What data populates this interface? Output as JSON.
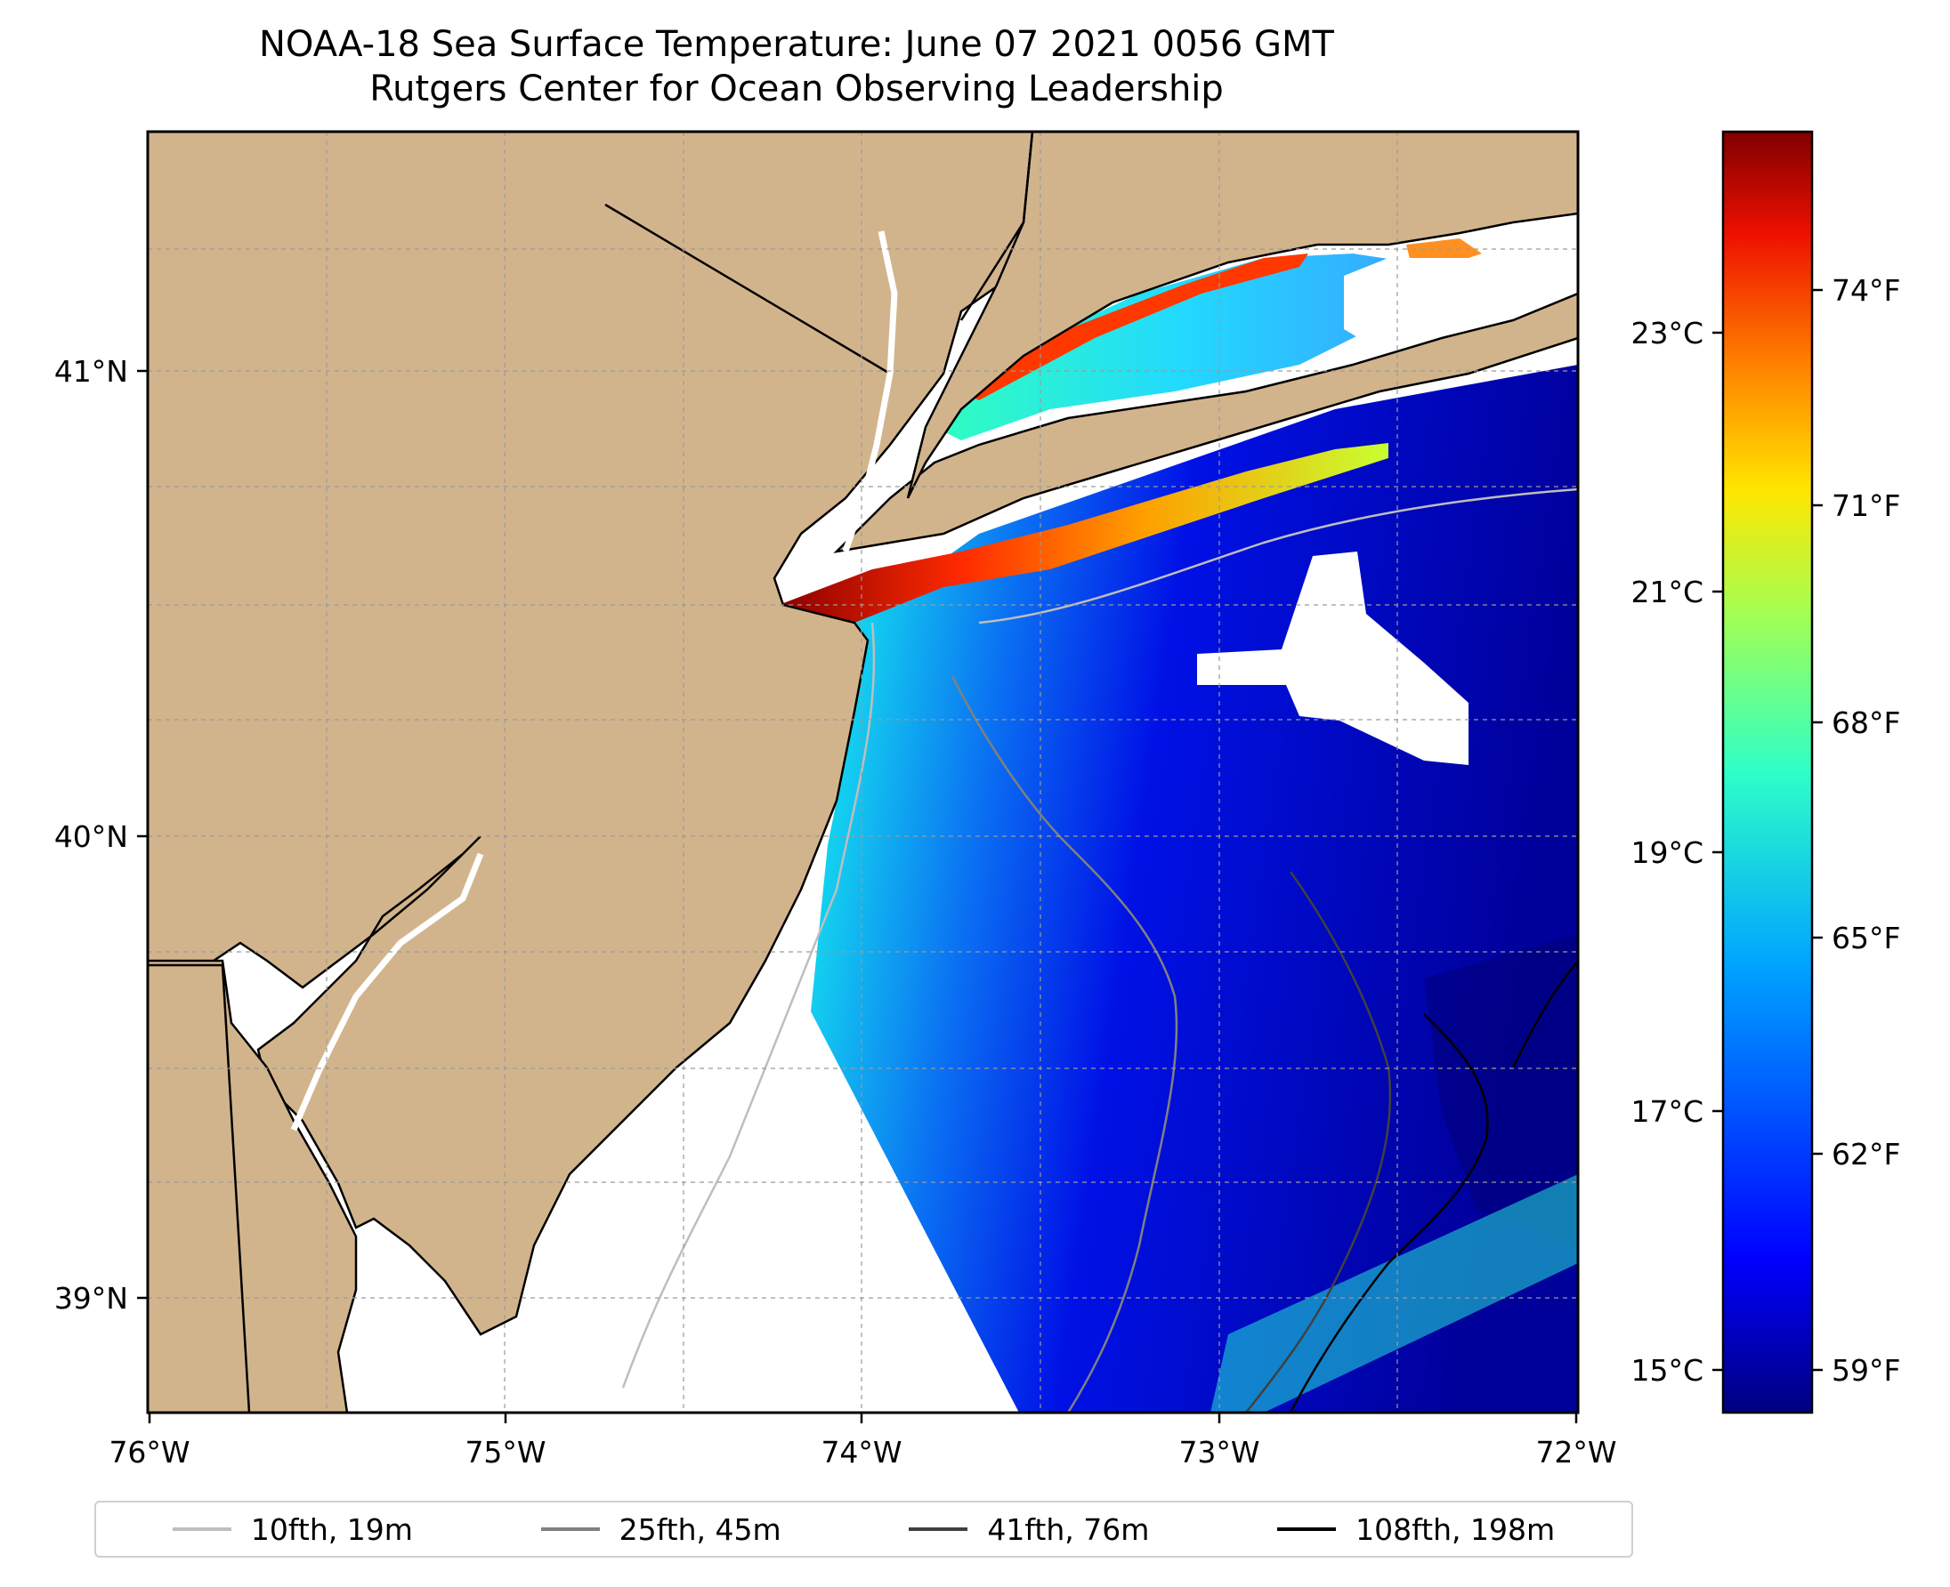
{
  "title": {
    "line1": "NOAA-18 Sea Surface Temperature: June 07 2021 0056 GMT",
    "line2": "Rutgers Center for Ocean Observing Leadership"
  },
  "map": {
    "lon_ticks": [
      "76°W",
      "75°W",
      "74°W",
      "73°W",
      "72°W"
    ],
    "lat_ticks": [
      "41°N",
      "40°N",
      "39°N"
    ],
    "extent": {
      "lon_min": -76,
      "lon_max": -72,
      "lat_min": 38.75,
      "lat_max": 41.5
    },
    "land_color": "#d2b48c",
    "gridlines": true
  },
  "colorbar": {
    "colormap": "jet",
    "range_f": [
      58,
      76
    ],
    "celsius_ticks": [
      "23°C",
      "21°C",
      "19°C",
      "17°C",
      "15°C"
    ],
    "fahrenheit_ticks": [
      "74°F",
      "71°F",
      "68°F",
      "65°F",
      "62°F",
      "59°F"
    ]
  },
  "legend": [
    {
      "label": "10fth, 19m",
      "color": "#bebebe"
    },
    {
      "label": "25fth, 45m",
      "color": "#808080"
    },
    {
      "label": "41fth, 76m",
      "color": "#404040"
    },
    {
      "label": "108fth, 198m",
      "color": "#000000"
    }
  ]
}
